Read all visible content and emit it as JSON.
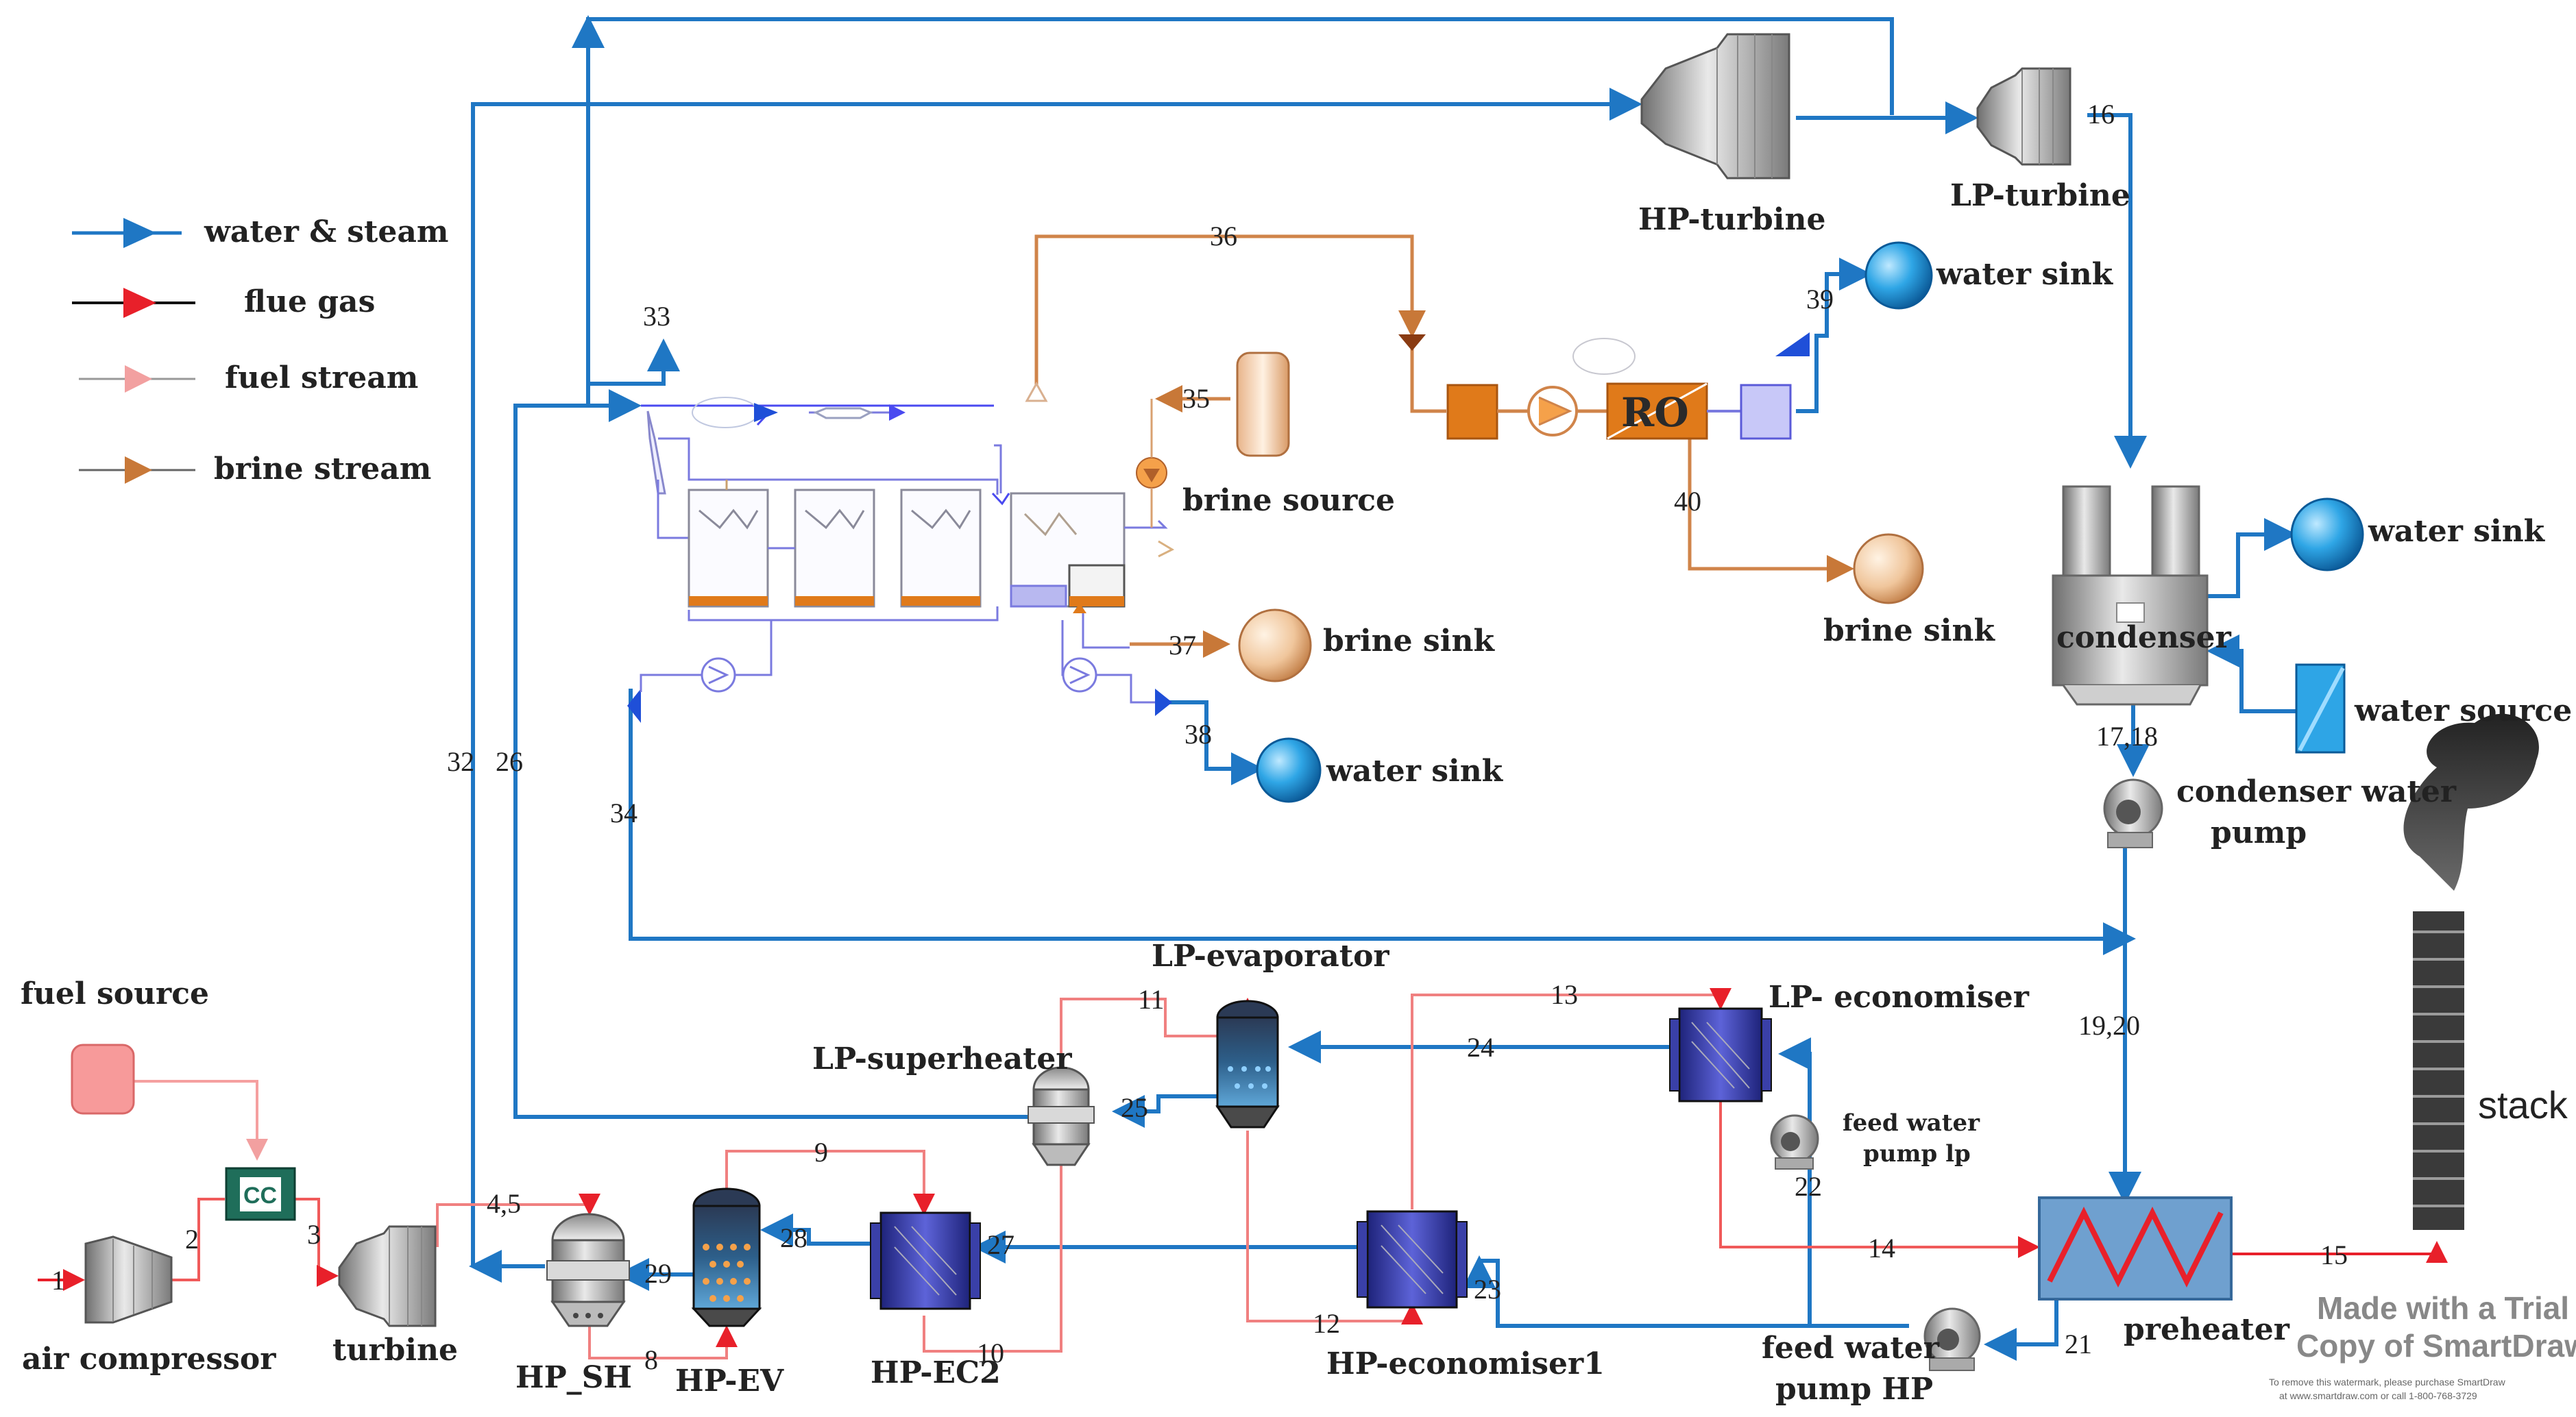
{
  "legend": {
    "water_steam": "water & steam",
    "flue_gas": "flue gas",
    "fuel_stream": "fuel stream",
    "brine_stream": "brine stream"
  },
  "components": {
    "hp_turbine": "HP-turbine",
    "lp_turbine": "LP-turbine",
    "water_sink_top": "water sink",
    "water_sink_condenser": "water sink",
    "water_sink_med": "water sink",
    "brine_source": "brine source",
    "brine_sink_med": "brine sink",
    "brine_sink_ro": "brine sink",
    "ro": "RO",
    "condenser": "condenser",
    "water_source": "water source",
    "condenser_pump_line1": "condenser water",
    "condenser_pump_line2": "pump",
    "fuel_source": "fuel source",
    "cc": "CC",
    "air_compressor": "air compressor",
    "turbine": "turbine",
    "hp_sh": "HP_SH",
    "hp_ev": "HP-EV",
    "hp_ec2": "HP-EC2",
    "lp_superheater": "LP-superheater",
    "lp_evaporator": "LP-evaporator",
    "lp_economiser": "LP- economiser",
    "feed_pump_lp_line1": "feed water",
    "feed_pump_lp_line2": "pump lp",
    "hp_economiser1": "HP-economiser1",
    "feed_pump_hp_line1": "feed water",
    "feed_pump_hp_line2": "pump HP",
    "preheater": "preheater",
    "stack": "stack"
  },
  "streams": {
    "s1": "1",
    "s2": "2",
    "s3": "3",
    "s45": "4,5",
    "s8": "8",
    "s9": "9",
    "s10": "10",
    "s11": "11",
    "s12": "12",
    "s13": "13",
    "s14": "14",
    "s15": "15",
    "s16": "16",
    "s1718": "17,18",
    "s1920": "19,20",
    "s21": "21",
    "s22": "22",
    "s23": "23",
    "s24": "24",
    "s25": "25",
    "s26": "26",
    "s27": "27",
    "s28": "28",
    "s29": "29",
    "s32": "32",
    "s33": "33",
    "s34": "34",
    "s35": "35",
    "s36": "36",
    "s37": "37",
    "s38": "38",
    "s39": "39",
    "s40": "40"
  },
  "watermark": {
    "line1": "Made with a Trial",
    "line2": "Copy of SmartDraw",
    "small1": "To remove this watermark, please purchase SmartDraw",
    "small2": "at www.smartdraw.com or call 1-800-768-3729"
  },
  "colors": {
    "water_steam": "#1f77c4",
    "flue_gas": "#e8202a",
    "fuel_stream": "#f2a0a0",
    "brine_stream": "#c87838"
  }
}
